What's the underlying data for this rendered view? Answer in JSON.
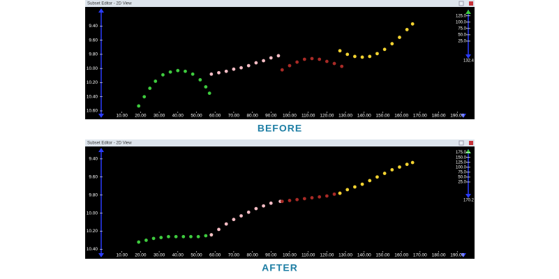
{
  "chart_data": [
    {
      "type": "scatter",
      "title": "Subset Editor - 2D View",
      "caption": "BEFORE",
      "xlim": [
        0,
        195
      ],
      "xticks": [
        {
          "value": 10,
          "label": "10.00"
        },
        {
          "value": 20,
          "label": "20.00"
        },
        {
          "value": 30,
          "label": "30.00"
        },
        {
          "value": 40,
          "label": "40.00"
        },
        {
          "value": 50,
          "label": "50.00"
        },
        {
          "value": 60,
          "label": "60.00"
        },
        {
          "value": 70,
          "label": "70.00"
        },
        {
          "value": 80,
          "label": "80.00"
        },
        {
          "value": 90,
          "label": "90.00"
        },
        {
          "value": 100,
          "label": "100.00"
        },
        {
          "value": 110,
          "label": "110.00"
        },
        {
          "value": 120,
          "label": "120.00"
        },
        {
          "value": 130,
          "label": "130.00"
        },
        {
          "value": 140,
          "label": "140.00"
        },
        {
          "value": 150,
          "label": "150.00"
        },
        {
          "value": 160,
          "label": "160.00"
        },
        {
          "value": 170,
          "label": "170.00"
        },
        {
          "value": 180,
          "label": "180.00"
        },
        {
          "value": 190,
          "label": "190.00"
        }
      ],
      "ylim": [
        10.61,
        9.14
      ],
      "yticks": [
        {
          "value": 9.4,
          "label": "9.40"
        },
        {
          "value": 9.6,
          "label": "9.60"
        },
        {
          "value": 9.8,
          "label": "9.80"
        },
        {
          "value": 10.0,
          "label": "10.00"
        },
        {
          "value": 10.2,
          "label": "10.20"
        },
        {
          "value": 10.4,
          "label": "10.40"
        },
        {
          "value": 10.6,
          "label": "10.60"
        }
      ],
      "scale": {
        "ticks": [
          {
            "value": 125,
            "label": "125.0"
          },
          {
            "value": 100,
            "label": "100.0"
          },
          {
            "value": 75,
            "label": "75.0"
          },
          {
            "value": 50,
            "label": "50.0"
          },
          {
            "value": 25,
            "label": "25.0"
          }
        ],
        "max": 132.4
      },
      "series": [
        {
          "color": "#3ecb3e",
          "x": [
            19,
            22,
            25,
            28,
            32,
            36,
            40,
            44,
            48,
            52,
            55,
            57
          ],
          "values": [
            10.53,
            10.4,
            10.28,
            10.18,
            10.09,
            10.05,
            10.03,
            10.04,
            10.08,
            10.16,
            10.26,
            10.35
          ]
        },
        {
          "color": "#f6bcc4",
          "x": [
            58,
            62,
            66,
            70,
            74,
            78,
            82,
            86,
            90,
            94
          ],
          "values": [
            10.08,
            10.06,
            10.04,
            10.01,
            9.99,
            9.96,
            9.92,
            9.89,
            9.85,
            9.82
          ]
        },
        {
          "color": "#a82a26",
          "x": [
            96,
            100,
            104,
            108,
            112,
            116,
            120,
            124,
            128
          ],
          "values": [
            10.02,
            9.96,
            9.91,
            9.87,
            9.86,
            9.87,
            9.9,
            9.93,
            9.97
          ]
        },
        {
          "color": "#f2d230",
          "x": [
            127,
            131,
            135,
            139,
            143,
            147,
            151,
            155,
            159,
            163,
            166
          ],
          "values": [
            9.75,
            9.8,
            9.83,
            9.84,
            9.83,
            9.79,
            9.73,
            9.65,
            9.56,
            9.45,
            9.37
          ]
        }
      ]
    },
    {
      "type": "scatter",
      "title": "Subset Editor - 2D View",
      "caption": "AFTER",
      "xlim": [
        0,
        195
      ],
      "xticks": [
        {
          "value": 10,
          "label": "10.00"
        },
        {
          "value": 20,
          "label": "20.00"
        },
        {
          "value": 30,
          "label": "30.00"
        },
        {
          "value": 40,
          "label": "40.00"
        },
        {
          "value": 50,
          "label": "50.00"
        },
        {
          "value": 60,
          "label": "60.00"
        },
        {
          "value": 70,
          "label": "70.00"
        },
        {
          "value": 80,
          "label": "80.00"
        },
        {
          "value": 90,
          "label": "90.00"
        },
        {
          "value": 100,
          "label": "100.00"
        },
        {
          "value": 110,
          "label": "110.00"
        },
        {
          "value": 120,
          "label": "120.00"
        },
        {
          "value": 130,
          "label": "130.00"
        },
        {
          "value": 140,
          "label": "140.00"
        },
        {
          "value": 150,
          "label": "150.00"
        },
        {
          "value": 160,
          "label": "160.00"
        },
        {
          "value": 170,
          "label": "170.00"
        },
        {
          "value": 180,
          "label": "180.00"
        },
        {
          "value": 190,
          "label": "190.00"
        }
      ],
      "ylim": [
        10.42,
        9.27
      ],
      "yticks": [
        {
          "value": 9.4,
          "label": "9.40"
        },
        {
          "value": 9.6,
          "label": "9.60"
        },
        {
          "value": 9.8,
          "label": "9.80"
        },
        {
          "value": 10.0,
          "label": "10.00"
        },
        {
          "value": 10.2,
          "label": "10.20"
        },
        {
          "value": 10.4,
          "label": "10.40"
        }
      ],
      "scale": {
        "ticks": [
          {
            "value": 175,
            "label": "175.0"
          },
          {
            "value": 150,
            "label": "150.0"
          },
          {
            "value": 125,
            "label": "125.0"
          },
          {
            "value": 100,
            "label": "100.0"
          },
          {
            "value": 75,
            "label": "75.0"
          },
          {
            "value": 50,
            "label": "50.0"
          },
          {
            "value": 25,
            "label": "25.0"
          }
        ],
        "max": 170.2
      },
      "series": [
        {
          "color": "#3ecb3e",
          "x": [
            19,
            23,
            27,
            31,
            35,
            39,
            43,
            47,
            51,
            55,
            58
          ],
          "values": [
            10.32,
            10.3,
            10.28,
            10.27,
            10.26,
            10.26,
            10.26,
            10.26,
            10.26,
            10.25,
            10.24
          ]
        },
        {
          "color": "#f6bcc4",
          "x": [
            58,
            62,
            66,
            70,
            74,
            78,
            82,
            86,
            90,
            95
          ],
          "values": [
            10.24,
            10.18,
            10.12,
            10.07,
            10.03,
            9.99,
            9.95,
            9.92,
            9.89,
            9.87
          ]
        },
        {
          "color": "#a82a26",
          "x": [
            96,
            100,
            104,
            108,
            112,
            116,
            120,
            124,
            127
          ],
          "values": [
            9.87,
            9.86,
            9.85,
            9.84,
            9.83,
            9.82,
            9.81,
            9.79,
            9.78
          ]
        },
        {
          "color": "#f2d230",
          "x": [
            127,
            131,
            135,
            139,
            143,
            147,
            151,
            155,
            159,
            163,
            166
          ],
          "values": [
            9.78,
            9.74,
            9.71,
            9.68,
            9.64,
            9.6,
            9.56,
            9.52,
            9.49,
            9.46,
            9.44
          ]
        }
      ]
    }
  ]
}
